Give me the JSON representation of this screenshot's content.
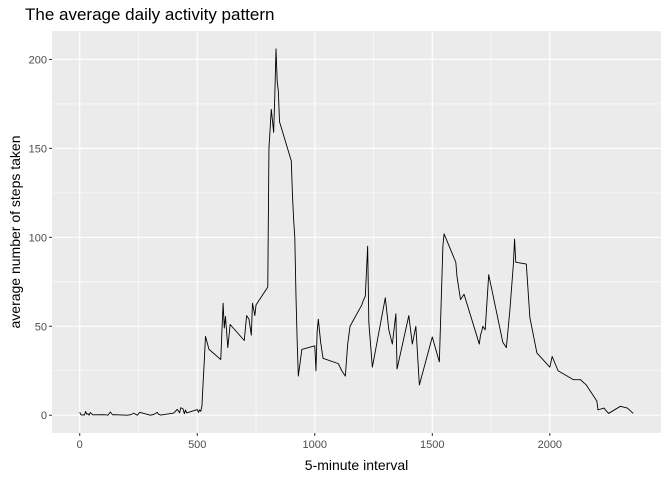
{
  "chart_data": {
    "type": "line",
    "title": "The average daily activity pattern",
    "xlabel": "5-minute interval",
    "ylabel": "average number of steps taken",
    "xlim": [
      -118,
      2473
    ],
    "ylim": [
      -10,
      216
    ],
    "xticks": [
      0,
      500,
      1000,
      1500,
      2000
    ],
    "yticks": [
      0,
      50,
      100,
      150,
      200
    ],
    "grid": true,
    "panel_background": "#ebebeb",
    "line_color": "#000000",
    "series": [
      {
        "x": [
          0,
          5,
          10,
          15,
          20,
          25,
          30,
          35,
          40,
          45,
          55,
          100,
          110,
          120,
          130,
          140,
          150,
          200,
          215,
          230,
          245,
          255,
          300,
          315,
          330,
          335,
          345,
          400,
          415,
          425,
          430,
          440,
          445,
          450,
          455,
          500,
          505,
          510,
          515,
          520,
          525,
          530,
          535,
          550,
          600,
          605,
          610,
          615,
          620,
          630,
          640,
          700,
          710,
          720,
          730,
          735,
          745,
          750,
          800,
          805,
          815,
          825,
          830,
          835,
          840,
          845,
          850,
          900,
          905,
          910,
          915,
          920,
          925,
          930,
          945,
          1000,
          1005,
          1010,
          1015,
          1025,
          1035,
          1100,
          1115,
          1130,
          1135,
          1140,
          1150,
          1200,
          1205,
          1215,
          1225,
          1230,
          1245,
          1300,
          1315,
          1330,
          1345,
          1350,
          1400,
          1415,
          1430,
          1445,
          1500,
          1530,
          1545,
          1550,
          1600,
          1605,
          1620,
          1635,
          1700,
          1705,
          1710,
          1715,
          1725,
          1740,
          1800,
          1815,
          1830,
          1845,
          1850,
          1855,
          1900,
          1915,
          1930,
          1945,
          2000,
          2010,
          2035,
          2100,
          2130,
          2155,
          2200,
          2205,
          2230,
          2250,
          2300,
          2330,
          2355
        ],
        "y": [
          1.7,
          0.3,
          0.1,
          0.2,
          0.1,
          2.1,
          0.5,
          0.9,
          0,
          1.5,
          0.2,
          0.3,
          0.2,
          0,
          1.8,
          0.2,
          0.3,
          0,
          0.2,
          1.1,
          0,
          1.6,
          0,
          0.4,
          1.6,
          0.5,
          0.1,
          1.2,
          3.3,
          1.4,
          4.2,
          3.5,
          0.8,
          2.9,
          1.3,
          3.2,
          1.6,
          3.0,
          2.2,
          5.3,
          18.6,
          30.6,
          44.3,
          37.0,
          31.3,
          47.6,
          63.0,
          49.0,
          55.5,
          38.0,
          51.0,
          42.0,
          56.0,
          54.0,
          45.0,
          63.0,
          56.0,
          62.0,
          72.0,
          150.0,
          172.0,
          159.0,
          180.0,
          206.0,
          188.0,
          182.0,
          165.0,
          143.0,
          124.0,
          110.0,
          100.0,
          67.0,
          42.0,
          22.0,
          37.0,
          39.0,
          25.0,
          47.0,
          54.0,
          41.0,
          32.0,
          29.0,
          25.0,
          22.0,
          31.0,
          40.0,
          50.0,
          62.0,
          64.0,
          67.0,
          95.0,
          52.0,
          27.0,
          66.0,
          48.0,
          40.0,
          57.0,
          26.0,
          56.0,
          40.0,
          50.0,
          17.0,
          44.0,
          30.0,
          95.0,
          102.0,
          86.0,
          78.0,
          65.0,
          68.0,
          40.0,
          45.0,
          47.0,
          50.0,
          48.0,
          79.0,
          41.0,
          38.0,
          59.0,
          85.0,
          99.0,
          86.0,
          85.0,
          55.0,
          45.0,
          35.0,
          27.0,
          33.0,
          25.0,
          20.0,
          20.0,
          17.0,
          8.0,
          3.0,
          4.0,
          1.0,
          5.0,
          4.0,
          1.0
        ]
      }
    ]
  }
}
